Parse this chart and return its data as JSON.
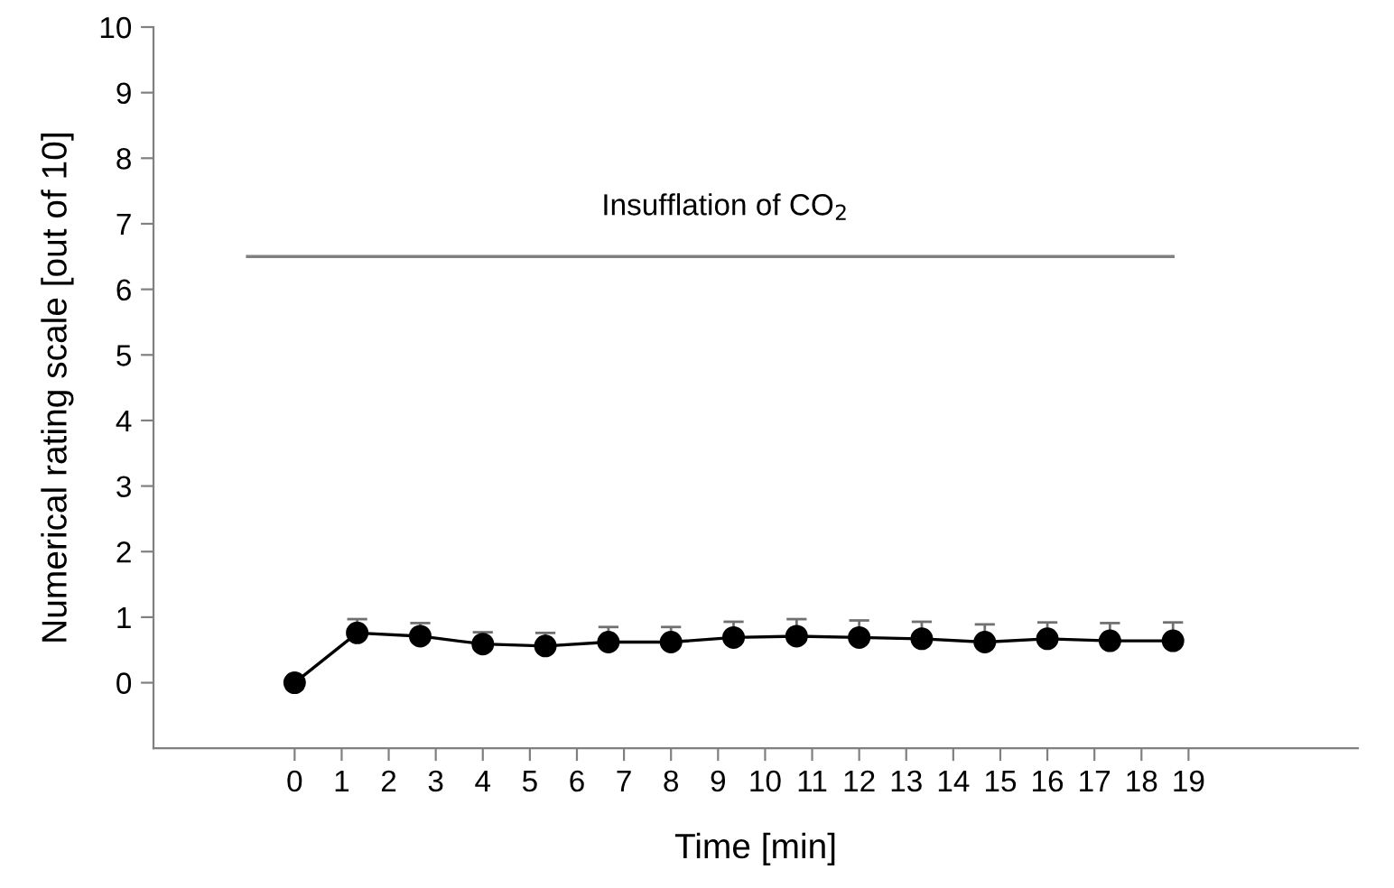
{
  "chart_data": {
    "type": "line",
    "xlabel": "Time [min]",
    "ylabel": "Numerical rating scale [out of 10]",
    "xlim": [
      -3,
      22.6
    ],
    "xticks": [
      0,
      1,
      2,
      3,
      4,
      5,
      6,
      7,
      8,
      9,
      10,
      11,
      12,
      13,
      14,
      15,
      16,
      17,
      18,
      19
    ],
    "ylim": [
      -1,
      10
    ],
    "yticks": [
      0,
      1,
      2,
      3,
      4,
      5,
      6,
      7,
      8,
      9,
      10
    ],
    "grid": false,
    "legend": false,
    "marker": "circle",
    "line_style": "solid",
    "series": [
      {
        "color": "#000000",
        "x": [
          0,
          1.33,
          2.67,
          4,
          5.33,
          6.67,
          8,
          9.33,
          10.67,
          12,
          13.33,
          14.67,
          16,
          17.33,
          18.67
        ],
        "values": [
          0,
          0.76,
          0.71,
          0.59,
          0.56,
          0.62,
          0.62,
          0.69,
          0.71,
          0.69,
          0.67,
          0.62,
          0.67,
          0.64,
          0.64
        ],
        "errors": [
          null,
          [
            0.76,
            0.97
          ],
          [
            0.71,
            0.91
          ],
          [
            0.59,
            0.77
          ],
          [
            0.56,
            0.76
          ],
          [
            0.62,
            0.85
          ],
          [
            0.62,
            0.85
          ],
          [
            0.69,
            0.93
          ],
          [
            0.71,
            0.97
          ],
          [
            0.69,
            0.95
          ],
          [
            0.67,
            0.93
          ],
          [
            0.62,
            0.89
          ],
          [
            0.67,
            0.92
          ],
          [
            0.64,
            0.91
          ],
          [
            0.64,
            0.92
          ]
        ]
      },
      {
        "type": "line",
        "color": "#808080",
        "marker": "none",
        "x": [
          -1,
          18.67
        ],
        "values": [
          6.5,
          6.5
        ]
      }
    ],
    "annotations": [
      {
        "text": "Insufflation of CO$_{2}$",
        "x": 9.15,
        "y": 6.5
      }
    ]
  }
}
